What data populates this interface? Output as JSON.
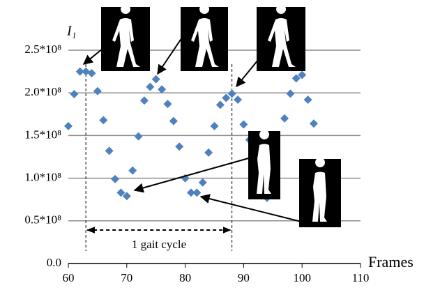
{
  "chart_data": {
    "type": "scatter",
    "y_label": "I₁",
    "x_label": "Frames",
    "annotation": "1 gait cycle",
    "x": [
      60,
      61,
      62,
      63,
      64,
      65,
      66,
      67,
      68,
      69,
      70,
      71,
      72,
      73,
      74,
      75,
      76,
      77,
      78,
      79,
      80,
      81,
      82,
      83,
      84,
      85,
      86,
      87,
      88,
      89,
      90,
      91,
      94,
      97,
      98,
      99,
      100,
      101,
      102
    ],
    "series": [
      {
        "color": "#4f81bd",
        "values": [
          161000000,
          198500000,
          225000000,
          225000000,
          223000000,
          202000000,
          168000000,
          132000000,
          99000000,
          83000000,
          79000000,
          109000000,
          149000000,
          191000000,
          207000000,
          216000000,
          204000000,
          187000000,
          167000000,
          137000000,
          100000000,
          83000000,
          83000000,
          95000000,
          130000000,
          161000000,
          186000000,
          194000000,
          199000000,
          192000000,
          163000000,
          145000000,
          77000000,
          170000000,
          199000000,
          217000000,
          221000000,
          192000000,
          164000000
        ]
      }
    ],
    "xlim": [
      60,
      110
    ],
    "xticks": [
      60,
      70,
      80,
      90,
      100,
      110
    ],
    "ylim": [
      0,
      250000000
    ],
    "yticks": [
      {
        "value": 0,
        "label": "0.0"
      },
      {
        "value": 50000000,
        "label": "0.5*10⁸"
      },
      {
        "value": 100000000,
        "label": "1.0*10⁸"
      },
      {
        "value": 150000000,
        "label": "1.5*10⁸"
      },
      {
        "value": 200000000,
        "label": "2.0*10⁸"
      },
      {
        "value": 250000000,
        "label": "2.5*10⁸"
      }
    ],
    "grid": true,
    "cycle_markers": [
      63,
      88
    ]
  }
}
